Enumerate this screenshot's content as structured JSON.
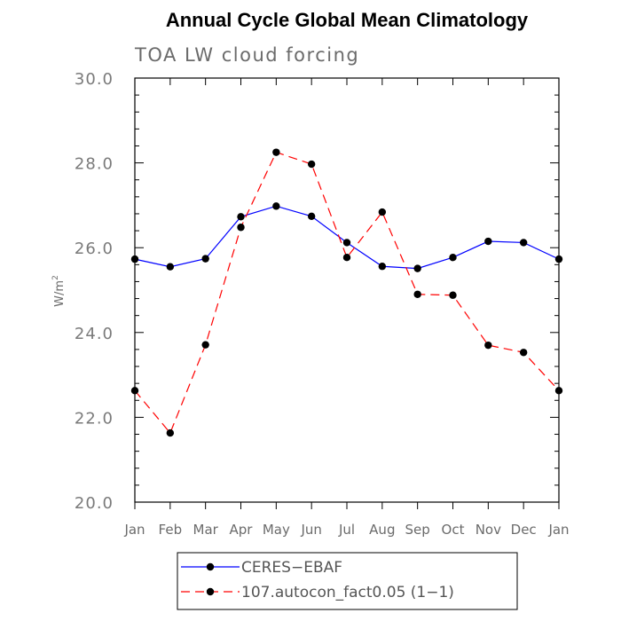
{
  "chart_data": {
    "type": "line",
    "title": "Annual Cycle Global Mean Climatology",
    "subtitle": "TOA LW cloud forcing",
    "ylabel": "W/m",
    "ylabel_superscript": "2",
    "xlabel": "",
    "categories": [
      "Jan",
      "Feb",
      "Mar",
      "Apr",
      "May",
      "Jun",
      "Jul",
      "Aug",
      "Sep",
      "Oct",
      "Nov",
      "Dec",
      "Jan"
    ],
    "ylim": [
      20.0,
      30.0
    ],
    "yticks": [
      20.0,
      22.0,
      24.0,
      26.0,
      28.0,
      30.0
    ],
    "ytick_labels": [
      "20.0",
      "22.0",
      "24.0",
      "26.0",
      "28.0",
      "30.0"
    ],
    "grid": false,
    "legend_position": "bottom-center",
    "series": [
      {
        "name": "CERES−EBAF",
        "color": "#0000ff",
        "line_style": "solid",
        "marker": "filled-circle",
        "values": [
          25.73,
          25.55,
          25.74,
          26.73,
          26.98,
          26.74,
          26.12,
          25.56,
          25.51,
          25.77,
          26.15,
          26.12,
          25.73
        ]
      },
      {
        "name": "107.autocon_fact0.05 (1−1)",
        "color": "#ff0000",
        "line_style": "dashed",
        "marker": "filled-circle",
        "values": [
          22.63,
          21.63,
          23.71,
          26.48,
          28.25,
          27.97,
          25.77,
          26.84,
          24.9,
          24.88,
          23.7,
          23.53,
          22.63
        ]
      }
    ]
  }
}
